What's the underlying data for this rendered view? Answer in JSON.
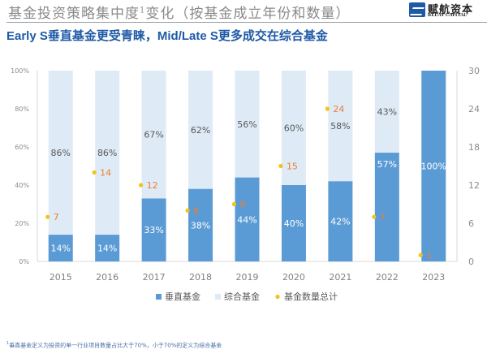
{
  "header": {
    "title": "基金投资策略集中度",
    "title_sup": "1",
    "title_suffix": "变化（按基金成立年份和数量）",
    "subtitle": "Early S垂直基金更受青睐，Mid/Late S更多成交在综合基金",
    "logo_cn": "赋航资本",
    "logo_en": "RELAY CAPITAL"
  },
  "footnote": {
    "sup": "1",
    "text": "垂直基金定义为投资的单一行业项目数量占比大于70%，小于70%的定义为综合基金"
  },
  "colors": {
    "vertical": "#5b9bd5",
    "comprehensive": "#deebf7",
    "count_dot": "#f5c218",
    "count_label": "#ed7d31",
    "axis_text": "#8c8c8c",
    "inner_dark_text": "#595959"
  },
  "chart_data": {
    "type": "bar",
    "stacked": true,
    "title": "基金投资策略集中度变化（按基金成立年份和数量）",
    "categories": [
      "2015",
      "2016",
      "2017",
      "2018",
      "2019",
      "2020",
      "2021",
      "2022",
      "2023"
    ],
    "series": [
      {
        "name": "垂直基金",
        "type": "bar",
        "axis": "left",
        "values": [
          14,
          14,
          33,
          38,
          44,
          40,
          42,
          57,
          100
        ],
        "labels": [
          "14%",
          "14%",
          "33%",
          "38%",
          "44%",
          "40%",
          "42%",
          "57%",
          "100%"
        ]
      },
      {
        "name": "综合基金",
        "type": "bar",
        "axis": "left",
        "values": [
          86,
          86,
          67,
          62,
          56,
          60,
          58,
          43,
          0
        ],
        "labels": [
          "86%",
          "86%",
          "67%",
          "62%",
          "56%",
          "60%",
          "58%",
          "43%",
          ""
        ]
      },
      {
        "name": "基金数量总计",
        "type": "scatter",
        "axis": "right",
        "values": [
          7,
          14,
          12,
          8,
          9,
          15,
          24,
          7,
          1
        ],
        "labels": [
          "7",
          "14",
          "12",
          "8",
          "9",
          "15",
          "24",
          "7",
          "1"
        ]
      }
    ],
    "y_left": {
      "min": 0,
      "max": 100,
      "ticks": [
        "0%",
        "20%",
        "40%",
        "60%",
        "80%",
        "100%"
      ]
    },
    "y_right": {
      "min": 0,
      "max": 30,
      "ticks": [
        "0",
        "6",
        "12",
        "18",
        "24",
        "30"
      ]
    },
    "xlabel": "",
    "ylabel": "",
    "grid": false,
    "legend": {
      "placement": "bottom",
      "items": [
        "垂直基金",
        "综合基金",
        "基金数量总计"
      ]
    }
  }
}
